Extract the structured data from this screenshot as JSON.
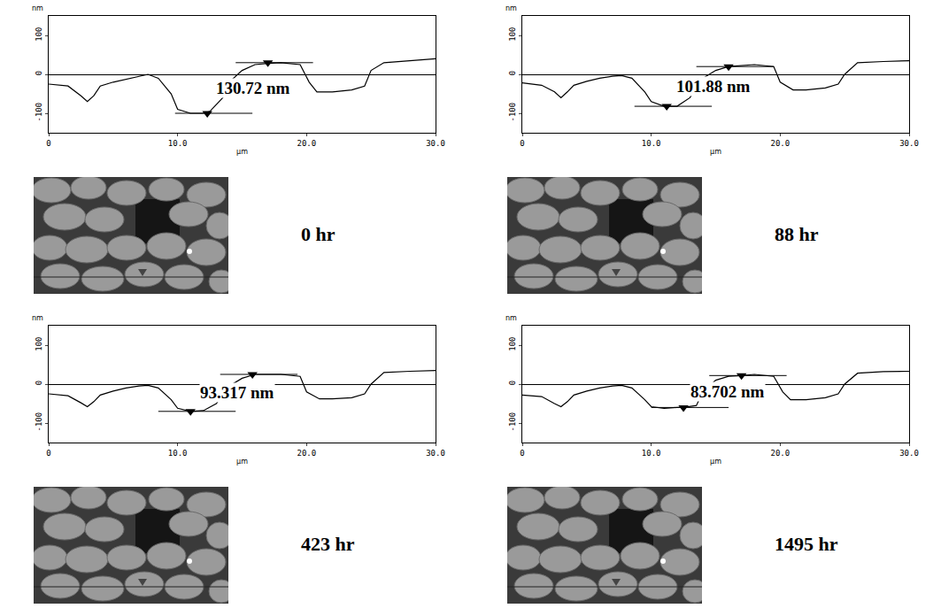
{
  "chart_data": [
    {
      "type": "line",
      "title": "0 hr",
      "xlabel": "µm",
      "ylabel": "nm",
      "x": [
        0,
        1.5,
        2.5,
        3,
        3.5,
        4,
        5,
        6,
        7,
        7.7,
        8.5,
        9.5,
        10,
        11,
        12,
        12.5,
        13.5,
        14,
        15,
        16,
        17,
        18,
        19.5,
        20.2,
        20.8,
        22,
        23.5,
        24.5,
        25,
        26,
        28,
        30
      ],
      "values": [
        -25,
        -30,
        -55,
        -70,
        -55,
        -30,
        -20,
        -12,
        -5,
        0,
        -10,
        -50,
        -90,
        -100,
        -100,
        -95,
        -60,
        -20,
        10,
        25,
        28,
        30,
        25,
        -20,
        -45,
        -45,
        -40,
        -30,
        10,
        30,
        35,
        40
      ],
      "cursors": [
        {
          "x": 12.3,
          "y": -100
        },
        {
          "x": 17,
          "y": 30
        }
      ],
      "annotations": [
        {
          "text": "130.72 nm"
        }
      ],
      "xlim": [
        0,
        30
      ],
      "ylim": [
        -150,
        150
      ],
      "xticks": [
        0,
        {
          "value": 10,
          "label": "10.0"
        },
        {
          "value": 20,
          "label": "20.0"
        },
        {
          "value": 30,
          "label": "30.0"
        }
      ],
      "yticks": [
        -100,
        0,
        100
      ],
      "grid": false,
      "color": "#000000"
    },
    {
      "type": "line",
      "title": "88 hr",
      "xlabel": "µm",
      "ylabel": "nm",
      "x": [
        0,
        1.5,
        2.5,
        3,
        3.5,
        4,
        5,
        6,
        7,
        7.7,
        8.5,
        9.5,
        10,
        11,
        12,
        13,
        14,
        15,
        16,
        18,
        19.5,
        20,
        21,
        22,
        23.5,
        24.5,
        25,
        26,
        28,
        30
      ],
      "values": [
        -22,
        -28,
        -45,
        -60,
        -45,
        -28,
        -18,
        -10,
        -5,
        -3,
        -10,
        -45,
        -70,
        -82,
        -82,
        -60,
        -10,
        10,
        20,
        25,
        20,
        -20,
        -40,
        -40,
        -35,
        -25,
        0,
        30,
        33,
        35
      ],
      "cursors": [
        {
          "x": 11.2,
          "y": -82
        },
        {
          "x": 16,
          "y": 20
        }
      ],
      "annotations": [
        {
          "text": "101.88 nm"
        }
      ],
      "xlim": [
        0,
        30
      ],
      "ylim": [
        -150,
        150
      ],
      "xticks": [
        0,
        {
          "value": 10,
          "label": "10.0"
        },
        {
          "value": 20,
          "label": "20.0"
        },
        {
          "value": 30,
          "label": "30.0"
        }
      ],
      "yticks": [
        -100,
        0,
        100
      ],
      "grid": false,
      "color": "#000000"
    },
    {
      "type": "line",
      "title": "423 hr",
      "xlabel": "µm",
      "ylabel": "nm",
      "x": [
        0,
        1.5,
        2.5,
        3,
        3.5,
        4,
        5,
        6,
        7,
        7.7,
        8.5,
        9.5,
        10,
        11,
        12,
        13,
        14,
        15,
        16,
        18,
        19.5,
        20,
        21,
        22,
        23.5,
        24.5,
        25,
        26,
        28,
        30
      ],
      "values": [
        -25,
        -30,
        -48,
        -58,
        -45,
        -28,
        -18,
        -10,
        -5,
        -3,
        -10,
        -40,
        -62,
        -70,
        -68,
        -50,
        -5,
        15,
        25,
        25,
        20,
        -20,
        -38,
        -38,
        -35,
        -25,
        0,
        30,
        33,
        35
      ],
      "cursors": [
        {
          "x": 11,
          "y": -70
        },
        {
          "x": 15.8,
          "y": 25
        }
      ],
      "annotations": [
        {
          "text": "93.317 nm"
        }
      ],
      "xlim": [
        0,
        30
      ],
      "ylim": [
        -150,
        150
      ],
      "xticks": [
        0,
        {
          "value": 10,
          "label": "10.0"
        },
        {
          "value": 20,
          "label": "20.0"
        },
        {
          "value": 30,
          "label": "30.0"
        }
      ],
      "yticks": [
        -100,
        0,
        100
      ],
      "grid": false,
      "color": "#000000"
    },
    {
      "type": "line",
      "title": "1495 hr",
      "xlabel": "µm",
      "ylabel": "nm",
      "x": [
        0,
        1.5,
        2.5,
        3,
        3.5,
        4,
        5,
        6,
        7,
        7.7,
        8.5,
        9.5,
        10,
        11,
        12,
        12.5,
        13.5,
        14,
        15,
        16,
        17,
        18,
        19.5,
        20.2,
        20.8,
        22,
        23.5,
        24.5,
        25,
        26,
        28,
        30
      ],
      "values": [
        -28,
        -32,
        -50,
        -58,
        -45,
        -28,
        -18,
        -10,
        -5,
        -3,
        -10,
        -40,
        -58,
        -62,
        -60,
        -60,
        -55,
        -20,
        10,
        20,
        22,
        25,
        20,
        -20,
        -40,
        -40,
        -35,
        -25,
        0,
        28,
        32,
        33
      ],
      "cursors": [
        {
          "x": 12.5,
          "y": -60
        },
        {
          "x": 17,
          "y": 22
        }
      ],
      "annotations": [
        {
          "text": "83.702 nm"
        }
      ],
      "xlim": [
        0,
        30
      ],
      "ylim": [
        -150,
        150
      ],
      "xticks": [
        0,
        {
          "value": 10,
          "label": "10.0"
        },
        {
          "value": 20,
          "label": "20.0"
        },
        {
          "value": 30,
          "label": "30.0"
        }
      ],
      "yticks": [
        -100,
        0,
        100
      ],
      "grid": false,
      "color": "#000000"
    }
  ]
}
